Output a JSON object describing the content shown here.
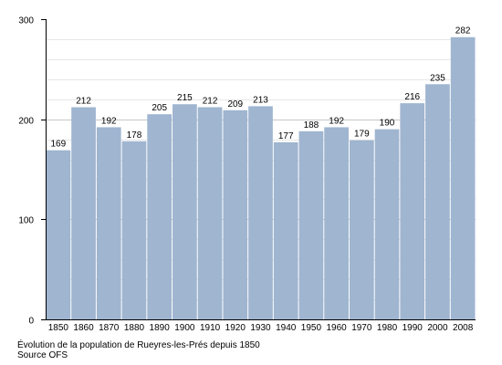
{
  "chart_data": {
    "type": "bar",
    "categories": [
      "1850",
      "1860",
      "1870",
      "1880",
      "1890",
      "1900",
      "1910",
      "1920",
      "1930",
      "1940",
      "1950",
      "1960",
      "1970",
      "1980",
      "1990",
      "2000",
      "2008"
    ],
    "values": [
      169,
      212,
      192,
      178,
      205,
      215,
      212,
      209,
      213,
      177,
      188,
      192,
      179,
      190,
      216,
      235,
      282
    ],
    "data_labels": [
      "169",
      "212",
      "192",
      "178",
      "205",
      "215",
      "212",
      "209",
      "213",
      "177",
      "188",
      "192",
      "179",
      "190",
      "216",
      "235",
      "282"
    ],
    "ylim": [
      0,
      300
    ],
    "yticks": [
      "0",
      "100",
      "200",
      "300"
    ],
    "grid": true,
    "bar_color": "#9fb5d0",
    "caption": "Évolution de la population de Rueyres-les-Prés depuis 1850",
    "source": "Source OFS"
  }
}
